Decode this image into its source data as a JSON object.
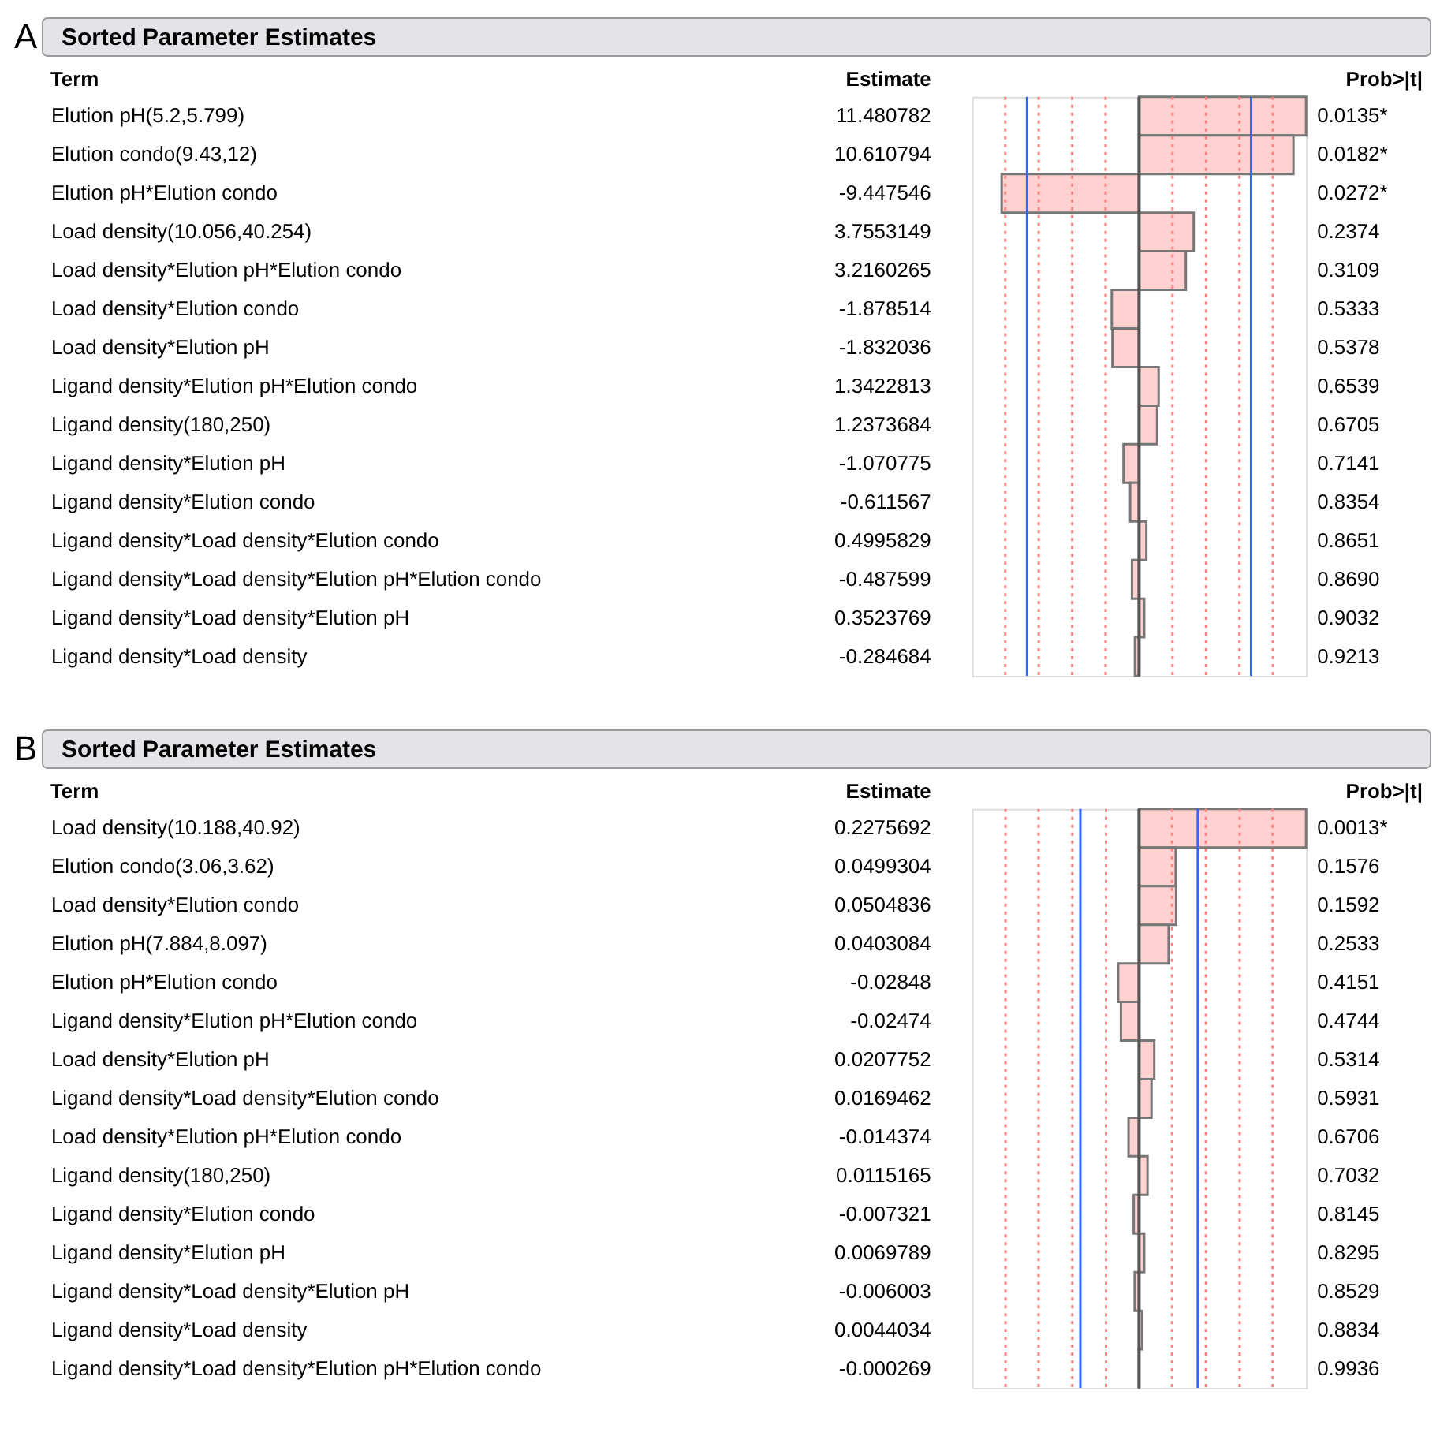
{
  "chart_data": [
    {
      "type": "bar",
      "orientation": "horizontal",
      "title": "Sorted Parameter Estimates",
      "ylabel": "Term",
      "color": "#ffd1d1",
      "data_labels": true,
      "categories": [
        "Elution pH(5.2,5.799)",
        "Elution condo(9.43,12)",
        "Elution pH*Elution condo",
        "Load density(10.056,40.254)",
        "Load density*Elution pH*Elution condo",
        "Load density*Elution condo",
        "Load density*Elution pH",
        "Ligand density*Elution pH*Elution condo",
        "Ligand density(180,250)",
        "Ligand density*Elution pH",
        "Ligand density*Elution condo",
        "Ligand density*Load density*Elution condo",
        "Ligand density*Load density*Elution pH*Elution condo",
        "Ligand density*Load density*Elution pH",
        "Ligand density*Load density"
      ],
      "values": [
        11.480782,
        10.610794,
        -9.447546,
        3.7553149,
        3.2160265,
        -1.878514,
        -1.832036,
        1.3422813,
        1.2373684,
        -1.070775,
        -0.611567,
        0.4995829,
        -0.487599,
        0.3523769,
        -0.284684
      ],
      "ref_lines": [
        {
          "axis": "x",
          "value": -9.2,
          "color": "#ff8080",
          "line_style": "dotted"
        },
        {
          "axis": "x",
          "value": -6.9,
          "color": "#ff8080",
          "line_style": "dotted"
        },
        {
          "axis": "x",
          "value": -4.6,
          "color": "#ff8080",
          "line_style": "dotted"
        },
        {
          "axis": "x",
          "value": -2.3,
          "color": "#ff8080",
          "line_style": "dotted"
        },
        {
          "axis": "x",
          "value": 2.3,
          "color": "#ff8080",
          "line_style": "dotted"
        },
        {
          "axis": "x",
          "value": 4.6,
          "color": "#ff8080",
          "line_style": "dotted"
        },
        {
          "axis": "x",
          "value": 6.9,
          "color": "#ff8080",
          "line_style": "dotted"
        },
        {
          "axis": "x",
          "value": 9.2,
          "color": "#ff8080",
          "line_style": "dotted"
        },
        {
          "axis": "x",
          "value": -7.7,
          "color": "#3366ff",
          "line_style": "solid"
        },
        {
          "axis": "x",
          "value": 7.7,
          "color": "#3366ff",
          "line_style": "solid"
        }
      ],
      "annotations": [
        "A",
        "Estimate",
        "Prob>|t|",
        "0.0135*",
        "0.0182*",
        "0.0272*",
        "0.2374",
        "0.3109",
        "0.5333",
        "0.5378",
        "0.6539",
        "0.6705",
        "0.7141",
        "0.8354",
        "0.8651",
        "0.8690",
        "0.9032",
        "0.9213"
      ]
    },
    {
      "type": "bar",
      "orientation": "horizontal",
      "title": "Sorted Parameter Estimates",
      "ylabel": "Term",
      "color": "#ffd1d1",
      "data_labels": true,
      "categories": [
        "Load density(10.188,40.92)",
        "Elution condo(3.06,3.62)",
        "Load density*Elution condo",
        "Elution pH(7.884,8.097)",
        "Elution pH*Elution condo",
        "Ligand density*Elution pH*Elution condo",
        "Load density*Elution pH",
        "Ligand density*Load density*Elution condo",
        "Load density*Elution pH*Elution condo",
        "Ligand density(180,250)",
        "Ligand density*Elution condo",
        "Ligand density*Elution pH",
        "Ligand density*Load density*Elution pH",
        "Ligand density*Load density",
        "Ligand density*Load density*Elution pH*Elution condo"
      ],
      "values": [
        0.2275692,
        0.0499304,
        0.0504836,
        0.0403084,
        -0.02848,
        -0.02474,
        0.0207752,
        0.0169462,
        -0.014374,
        0.0115165,
        -0.007321,
        0.0069789,
        -0.006003,
        0.0044034,
        -0.000269
      ],
      "ref_lines": [
        {
          "axis": "x",
          "value": -0.182,
          "color": "#ff8080",
          "line_style": "dotted"
        },
        {
          "axis": "x",
          "value": -0.137,
          "color": "#ff8080",
          "line_style": "dotted"
        },
        {
          "axis": "x",
          "value": -0.091,
          "color": "#ff8080",
          "line_style": "dotted"
        },
        {
          "axis": "x",
          "value": -0.045,
          "color": "#ff8080",
          "line_style": "dotted"
        },
        {
          "axis": "x",
          "value": 0.045,
          "color": "#ff8080",
          "line_style": "dotted"
        },
        {
          "axis": "x",
          "value": 0.091,
          "color": "#ff8080",
          "line_style": "dotted"
        },
        {
          "axis": "x",
          "value": 0.137,
          "color": "#ff8080",
          "line_style": "dotted"
        },
        {
          "axis": "x",
          "value": 0.182,
          "color": "#ff8080",
          "line_style": "dotted"
        },
        {
          "axis": "x",
          "value": -0.08,
          "color": "#3366ff",
          "line_style": "solid"
        },
        {
          "axis": "x",
          "value": 0.08,
          "color": "#3366ff",
          "line_style": "solid"
        }
      ],
      "annotations": [
        "B",
        "Estimate",
        "Prob>|t|",
        "0.0013*",
        "0.1576",
        "0.1592",
        "0.2533",
        "0.4151",
        "0.4744",
        "0.5314",
        "0.5931",
        "0.6706",
        "0.7032",
        "0.8145",
        "0.8295",
        "0.8529",
        "0.8834",
        "0.9936"
      ]
    }
  ]
}
